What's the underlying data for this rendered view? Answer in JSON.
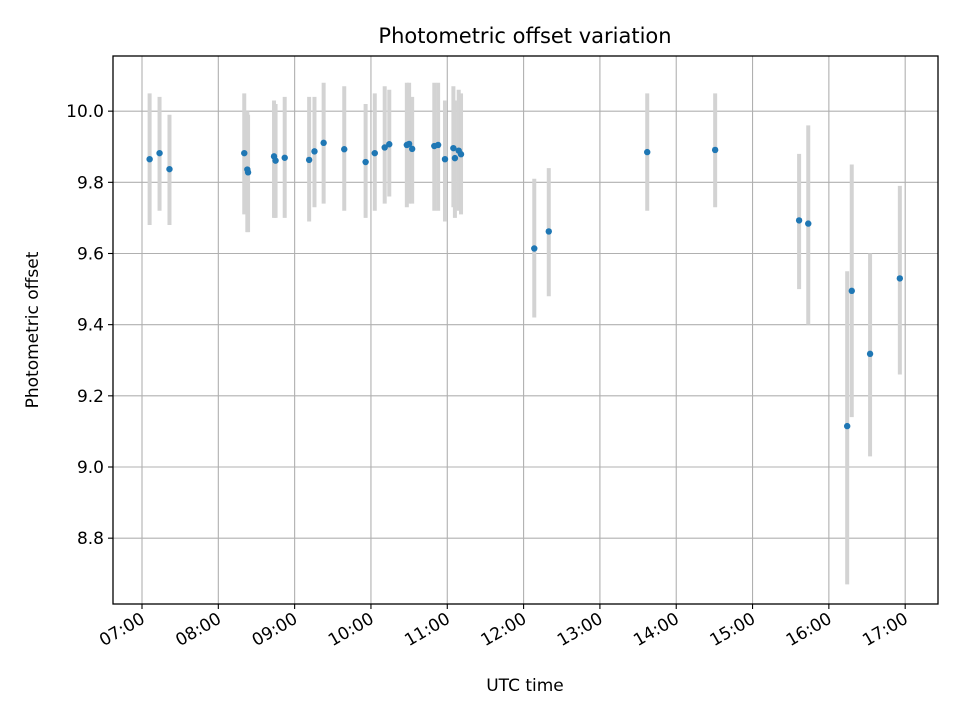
{
  "chart_data": {
    "type": "scatter",
    "title": "Photometric offset variation",
    "xlabel": "UTC time",
    "ylabel": "Photometric offset",
    "x_unit": "hour of day (UTC)",
    "xlim": [
      6.62,
      17.43
    ],
    "ylim": [
      8.615,
      10.155
    ],
    "x_ticks": [
      {
        "value": 7,
        "label": "07:00"
      },
      {
        "value": 8,
        "label": "08:00"
      },
      {
        "value": 9,
        "label": "09:00"
      },
      {
        "value": 10,
        "label": "10:00"
      },
      {
        "value": 11,
        "label": "11:00"
      },
      {
        "value": 12,
        "label": "12:00"
      },
      {
        "value": 13,
        "label": "13:00"
      },
      {
        "value": 14,
        "label": "14:00"
      },
      {
        "value": 15,
        "label": "15:00"
      },
      {
        "value": 16,
        "label": "16:00"
      },
      {
        "value": 17,
        "label": "17:00"
      }
    ],
    "y_ticks": [
      {
        "value": 8.8,
        "label": "8.8"
      },
      {
        "value": 9.0,
        "label": "9.0"
      },
      {
        "value": 9.2,
        "label": "9.2"
      },
      {
        "value": 9.4,
        "label": "9.4"
      },
      {
        "value": 9.6,
        "label": "9.6"
      },
      {
        "value": 9.8,
        "label": "9.8"
      },
      {
        "value": 10.0,
        "label": "10.0"
      }
    ],
    "grid": true,
    "colors": {
      "point": "#1f77b4",
      "errorbar": "#d3d3d3",
      "grid": "#b0b0b0"
    },
    "points": [
      {
        "x": 7.1,
        "y": 9.865,
        "lo": 9.68,
        "hi": 10.05
      },
      {
        "x": 7.23,
        "y": 9.882,
        "lo": 9.72,
        "hi": 10.04
      },
      {
        "x": 7.36,
        "y": 9.837,
        "lo": 9.68,
        "hi": 9.99
      },
      {
        "x": 8.34,
        "y": 9.882,
        "lo": 9.71,
        "hi": 10.05
      },
      {
        "x": 8.38,
        "y": 9.836,
        "lo": 9.66,
        "hi": 10.0
      },
      {
        "x": 8.39,
        "y": 9.828,
        "lo": 9.66,
        "hi": 9.99
      },
      {
        "x": 8.73,
        "y": 9.873,
        "lo": 9.7,
        "hi": 10.03
      },
      {
        "x": 8.75,
        "y": 9.861,
        "lo": 9.7,
        "hi": 10.02
      },
      {
        "x": 8.87,
        "y": 9.869,
        "lo": 9.7,
        "hi": 10.04
      },
      {
        "x": 9.19,
        "y": 9.863,
        "lo": 9.69,
        "hi": 10.04
      },
      {
        "x": 9.26,
        "y": 9.887,
        "lo": 9.73,
        "hi": 10.04
      },
      {
        "x": 9.38,
        "y": 9.911,
        "lo": 9.74,
        "hi": 10.08
      },
      {
        "x": 9.65,
        "y": 9.893,
        "lo": 9.72,
        "hi": 10.07
      },
      {
        "x": 9.93,
        "y": 9.857,
        "lo": 9.7,
        "hi": 10.02
      },
      {
        "x": 10.05,
        "y": 9.882,
        "lo": 9.72,
        "hi": 10.05
      },
      {
        "x": 10.18,
        "y": 9.898,
        "lo": 9.74,
        "hi": 10.07
      },
      {
        "x": 10.24,
        "y": 9.907,
        "lo": 9.76,
        "hi": 10.06
      },
      {
        "x": 10.47,
        "y": 9.905,
        "lo": 9.73,
        "hi": 10.08
      },
      {
        "x": 10.5,
        "y": 9.908,
        "lo": 9.74,
        "hi": 10.08
      },
      {
        "x": 10.54,
        "y": 9.894,
        "lo": 9.74,
        "hi": 10.04
      },
      {
        "x": 10.83,
        "y": 9.902,
        "lo": 9.72,
        "hi": 10.08
      },
      {
        "x": 10.88,
        "y": 9.905,
        "lo": 9.72,
        "hi": 10.08
      },
      {
        "x": 10.97,
        "y": 9.865,
        "lo": 9.69,
        "hi": 10.03
      },
      {
        "x": 11.08,
        "y": 9.896,
        "lo": 9.73,
        "hi": 10.07
      },
      {
        "x": 11.1,
        "y": 9.868,
        "lo": 9.7,
        "hi": 10.03
      },
      {
        "x": 11.15,
        "y": 9.889,
        "lo": 9.72,
        "hi": 10.06
      },
      {
        "x": 11.18,
        "y": 9.879,
        "lo": 9.71,
        "hi": 10.05
      },
      {
        "x": 12.14,
        "y": 9.614,
        "lo": 9.42,
        "hi": 9.81
      },
      {
        "x": 12.33,
        "y": 9.662,
        "lo": 9.48,
        "hi": 9.84
      },
      {
        "x": 13.62,
        "y": 9.885,
        "lo": 9.72,
        "hi": 10.05
      },
      {
        "x": 14.51,
        "y": 9.891,
        "lo": 9.73,
        "hi": 10.05
      },
      {
        "x": 15.61,
        "y": 9.693,
        "lo": 9.5,
        "hi": 9.88
      },
      {
        "x": 15.73,
        "y": 9.684,
        "lo": 9.4,
        "hi": 9.96
      },
      {
        "x": 16.24,
        "y": 9.115,
        "lo": 8.67,
        "hi": 9.55
      },
      {
        "x": 16.3,
        "y": 9.495,
        "lo": 9.14,
        "hi": 9.85
      },
      {
        "x": 16.54,
        "y": 9.318,
        "lo": 9.03,
        "hi": 9.6
      },
      {
        "x": 16.93,
        "y": 9.53,
        "lo": 9.26,
        "hi": 9.79
      }
    ]
  }
}
